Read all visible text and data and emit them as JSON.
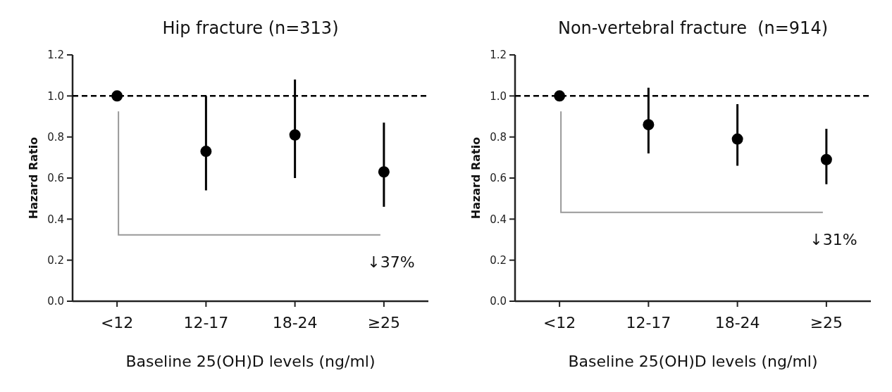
{
  "chart_data": [
    {
      "type": "scatter",
      "title": "Hip fracture (n=313)",
      "xlabel": "Baseline 25(OH)D levels (ng/ml)",
      "ylabel": "Hazard Ratio",
      "categories": [
        "<12",
        "12-17",
        "18-24",
        "≥25"
      ],
      "values": [
        1.0,
        0.73,
        0.81,
        0.63
      ],
      "errors": [
        null,
        [
          0.54,
          1.0
        ],
        [
          0.6,
          1.08
        ],
        [
          0.46,
          0.87
        ]
      ],
      "color": "#000000",
      "marker": "circle",
      "ylim": [
        0,
        1.2
      ],
      "yticks": [
        {
          "value": 0,
          "label": "0.0"
        },
        {
          "value": 0.2,
          "label": "0.2"
        },
        {
          "value": 0.4,
          "label": "0.4"
        },
        {
          "value": 0.6,
          "label": "0.6"
        },
        {
          "value": 0.8,
          "label": "0.8"
        },
        {
          "value": 1.0,
          "label": "1.0"
        },
        {
          "value": 1.2,
          "label": "1.2"
        }
      ],
      "ref_lines": [
        {
          "axis": "y",
          "value": 1.0,
          "color": "#000000",
          "line_style": "dashed"
        }
      ],
      "annotations": [
        "↓37%"
      ],
      "grid": false
    },
    {
      "type": "scatter",
      "title": "Non-vertebral fracture  (n=914)",
      "xlabel": "Baseline 25(OH)D levels (ng/ml)",
      "ylabel": "Hazard Ratio",
      "categories": [
        "<12",
        "12-17",
        "18-24",
        "≥25"
      ],
      "values": [
        1.0,
        0.86,
        0.79,
        0.69
      ],
      "errors": [
        null,
        [
          0.72,
          1.04
        ],
        [
          0.66,
          0.96
        ],
        [
          0.57,
          0.84
        ]
      ],
      "color": "#000000",
      "marker": "circle",
      "ylim": [
        0,
        1.2
      ],
      "yticks": [
        {
          "value": 0,
          "label": "0.0"
        },
        {
          "value": 0.2,
          "label": "0.2"
        },
        {
          "value": 0.4,
          "label": "0.4"
        },
        {
          "value": 0.6,
          "label": "0.6"
        },
        {
          "value": 0.8,
          "label": "0.8"
        },
        {
          "value": 1.0,
          "label": "1.0"
        },
        {
          "value": 1.2,
          "label": "1.2"
        }
      ],
      "ref_lines": [
        {
          "axis": "y",
          "value": 1.0,
          "color": "#000000",
          "line_style": "dashed"
        }
      ],
      "annotations": [
        "↓31%"
      ],
      "grid": false
    }
  ]
}
